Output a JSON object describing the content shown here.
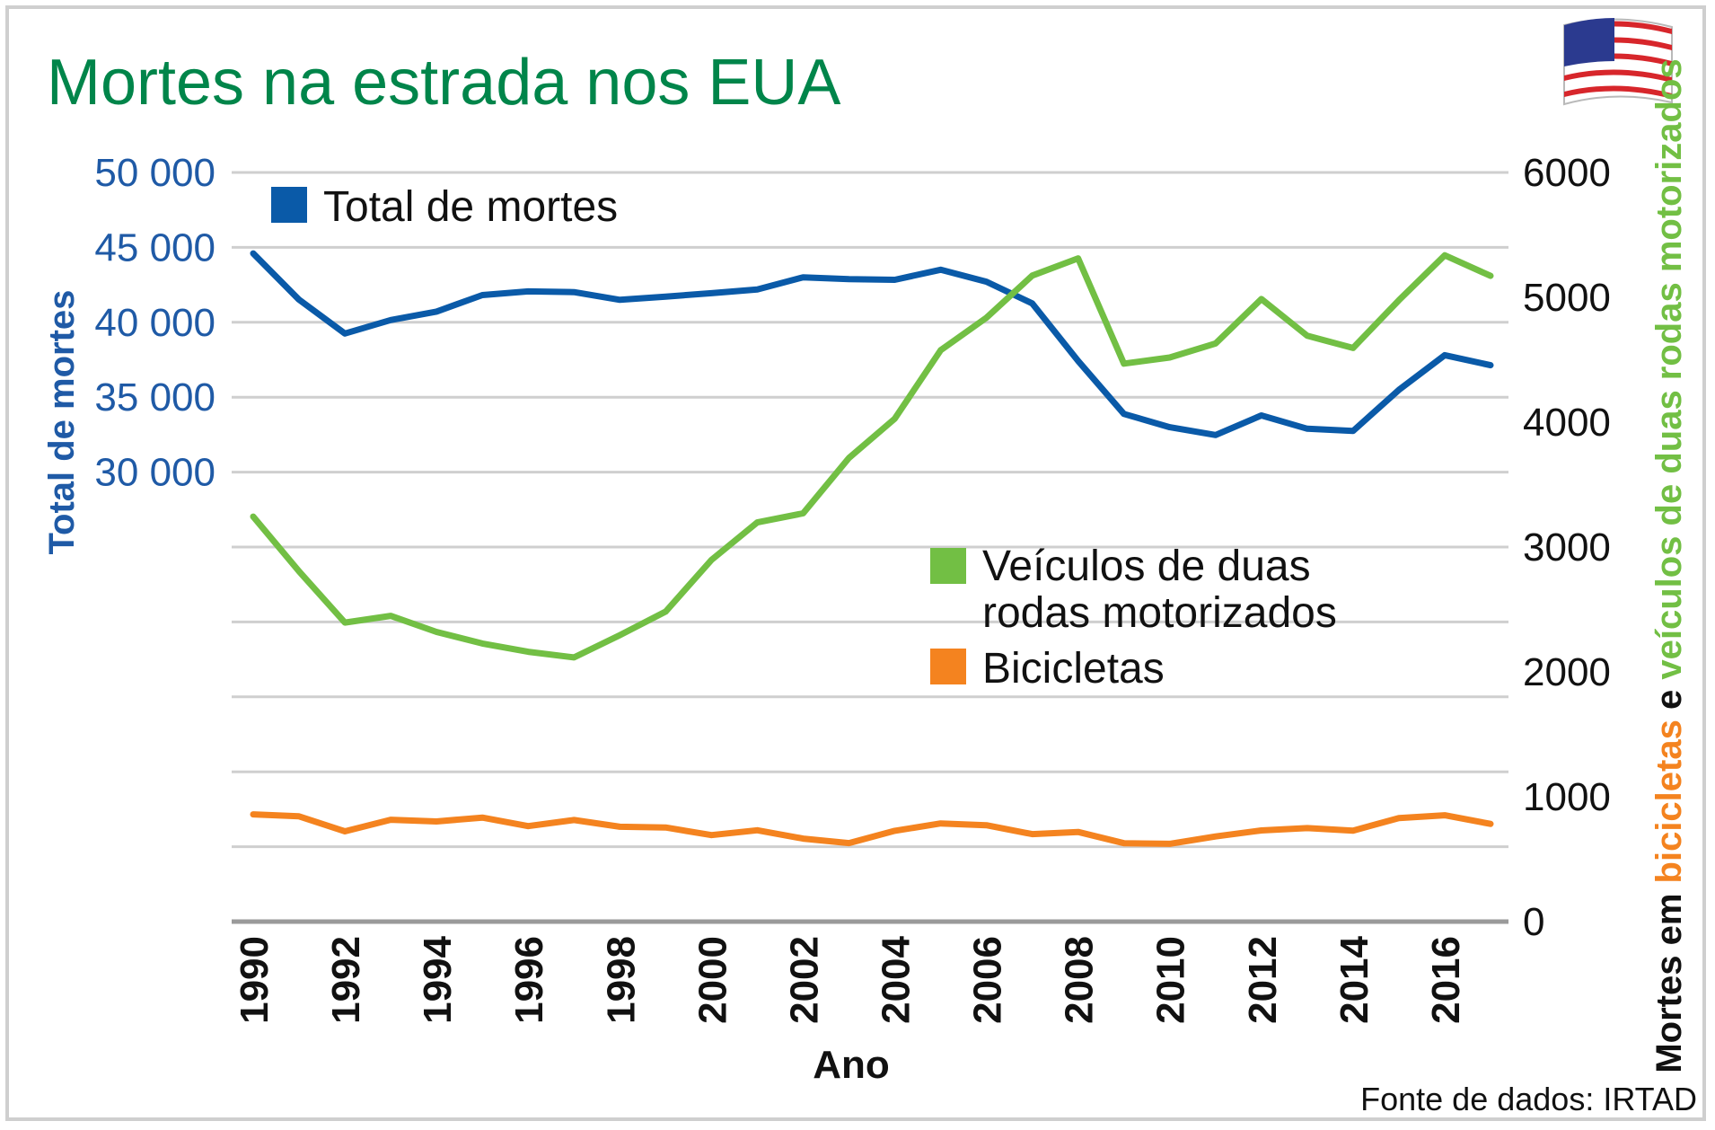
{
  "chart_data": {
    "type": "line",
    "title": "Mortes na estrada nos EUA",
    "xlabel": "Ano",
    "ylabel_left": "Total de mortes",
    "ylabel_right_parts": [
      {
        "text": "Mortes em ",
        "color": "#111111"
      },
      {
        "text": "bicicletas",
        "color": "#f4831f"
      },
      {
        "text": " e ",
        "color": "#111111"
      },
      {
        "text": "veículos de duas rodas motorizados",
        "color": "#72bf44"
      }
    ],
    "source": "Fonte de dados: IRTAD",
    "x": [
      1990,
      1991,
      1992,
      1993,
      1994,
      1995,
      1996,
      1997,
      1998,
      1999,
      2000,
      2001,
      2002,
      2003,
      2004,
      2005,
      2006,
      2007,
      2008,
      2009,
      2010,
      2011,
      2012,
      2013,
      2014,
      2015,
      2016,
      2017
    ],
    "x_tick_labels": [
      "1990",
      "1992",
      "1994",
      "1996",
      "1998",
      "2000",
      "2002",
      "2004",
      "2006",
      "2008",
      "2010",
      "2012",
      "2014",
      "2016"
    ],
    "left_axis": {
      "ylim": [
        0,
        50000
      ],
      "tick_values": [
        30000,
        35000,
        40000,
        45000,
        50000
      ],
      "tick_labels": [
        "30 000",
        "35 000",
        "40 000",
        "45 000",
        "50 000"
      ],
      "color": "#1f5aa6"
    },
    "right_axis": {
      "ylim": [
        0,
        6000
      ],
      "tick_values": [
        0,
        1000,
        2000,
        3000,
        4000,
        5000,
        6000
      ],
      "tick_labels": [
        "0",
        "1000",
        "2000",
        "3000",
        "4000",
        "5000",
        "6000"
      ]
    },
    "series": [
      {
        "name": "Total de mortes",
        "axis": "left",
        "color": "#0a5aa8",
        "values": [
          44599,
          41508,
          39250,
          40150,
          40716,
          41817,
          42065,
          42013,
          41501,
          41717,
          41945,
          42196,
          43005,
          42884,
          42836,
          43510,
          42708,
          41259,
          37423,
          33883,
          32999,
          32479,
          33782,
          32894,
          32744,
          35484,
          37806,
          37133
        ]
      },
      {
        "name": "Veículos de duas rodas motorizados",
        "axis": "right",
        "color": "#72bf44",
        "values": [
          3244,
          2806,
          2395,
          2449,
          2320,
          2227,
          2161,
          2116,
          2294,
          2483,
          2897,
          3197,
          3270,
          3714,
          4028,
          4576,
          4837,
          5174,
          5312,
          4469,
          4518,
          4630,
          4986,
          4692,
          4594,
          4976,
          5337,
          5172
        ]
      },
      {
        "name": "Bicicletas",
        "axis": "right",
        "color": "#f4831f",
        "values": [
          859,
          843,
          723,
          816,
          802,
          833,
          765,
          814,
          760,
          754,
          693,
          732,
          665,
          629,
          727,
          786,
          772,
          701,
          718,
          628,
          623,
          682,
          730,
          749,
          729,
          829,
          852,
          783
        ]
      }
    ],
    "legend": [
      {
        "label": "Total de mortes",
        "color": "#0a5aa8"
      },
      {
        "label": "Veículos de duas",
        "label2": "rodas motorizados",
        "color": "#72bf44"
      },
      {
        "label": "Bicicletas",
        "color": "#f4831f"
      }
    ],
    "grid": true
  }
}
